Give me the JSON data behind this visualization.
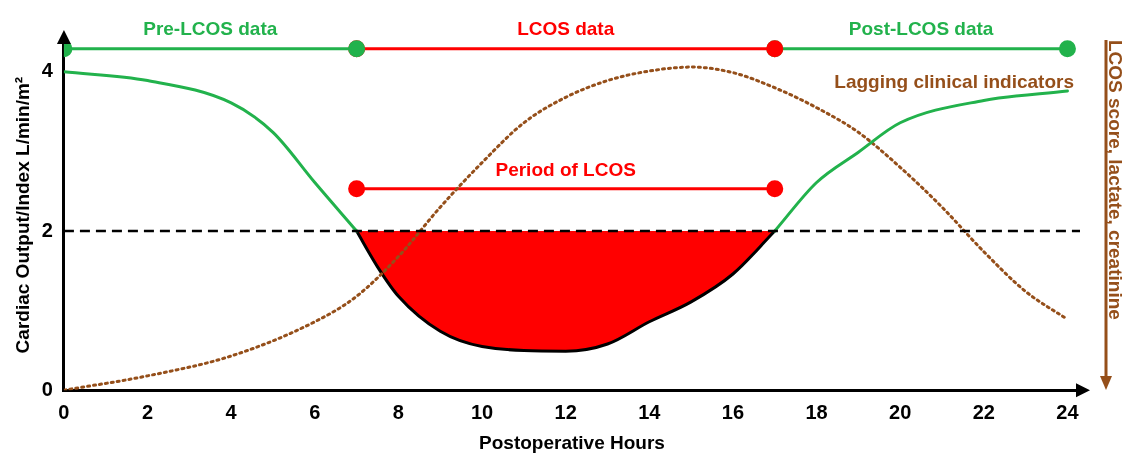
{
  "chart_data": {
    "type": "line",
    "xlabel": "Postoperative Hours",
    "ylabel": "Cardiac Output/Index L/min/m²",
    "y2label": "LCOS score, lactate, creatinine",
    "xlim": [
      0,
      24.3
    ],
    "xticks": [
      0,
      2,
      4,
      6,
      8,
      10,
      12,
      14,
      16,
      18,
      20,
      22,
      24
    ],
    "ylim": [
      0,
      4.4
    ],
    "yticks": [
      0,
      2,
      4
    ],
    "grid": false,
    "legend": false,
    "marker": "none",
    "ref_lines": [
      {
        "axis": "y",
        "value": 2,
        "color": "#000000",
        "line_style": "dashed"
      }
    ],
    "series": [
      {
        "color": "#22b24c",
        "x": [
          0,
          2,
          4,
          5,
          6,
          7
        ],
        "values": [
          4.0,
          3.89,
          3.61,
          3.24,
          2.61,
          2.0
        ]
      },
      {
        "type": "area",
        "color": "#ff0000",
        "x": [
          7,
          7.5,
          8,
          9,
          10,
          12,
          13,
          14,
          15,
          16,
          17
        ],
        "values": [
          2.0,
          1.55,
          1.18,
          0.74,
          0.55,
          0.49,
          0.58,
          0.86,
          1.11,
          1.46,
          2.0
        ]
      },
      {
        "color": "#22b24c",
        "x": [
          17,
          18,
          19,
          20,
          22,
          24
        ],
        "values": [
          2.0,
          2.61,
          2.99,
          3.36,
          3.64,
          3.76
        ]
      },
      {
        "name": "Lagging clinical indicators",
        "color": "#954f1a",
        "line_style": "dotted",
        "x": [
          0,
          2,
          4,
          6,
          7,
          8,
          9,
          10,
          11,
          12,
          13,
          14,
          15,
          16,
          17,
          18,
          19,
          20,
          21,
          22,
          23,
          24
        ],
        "values": [
          0,
          0.18,
          0.43,
          0.86,
          1.18,
          1.68,
          2.3,
          2.86,
          3.36,
          3.68,
          3.89,
          4.01,
          4.06,
          3.99,
          3.8,
          3.55,
          3.24,
          2.8,
          2.3,
          1.74,
          1.24,
          0.89
        ]
      },
      {
        "name": "Pre-LCOS data",
        "color": "#22b24c",
        "marker": "circle",
        "x": [
          0,
          7
        ],
        "values": [
          4.29,
          4.29
        ]
      },
      {
        "name": "LCOS data",
        "color": "#ff0000",
        "marker": "circle",
        "x": [
          7,
          17
        ],
        "values": [
          4.29,
          4.29
        ]
      },
      {
        "name": "Post-LCOS data",
        "color": "#22b24c",
        "marker": "circle",
        "x": [
          17,
          24
        ],
        "values": [
          4.29,
          4.29
        ]
      },
      {
        "name": "Period of LCOS",
        "color": "#ff0000",
        "marker": "circle",
        "x": [
          7,
          17
        ],
        "values": [
          2.53,
          2.53
        ]
      }
    ]
  }
}
